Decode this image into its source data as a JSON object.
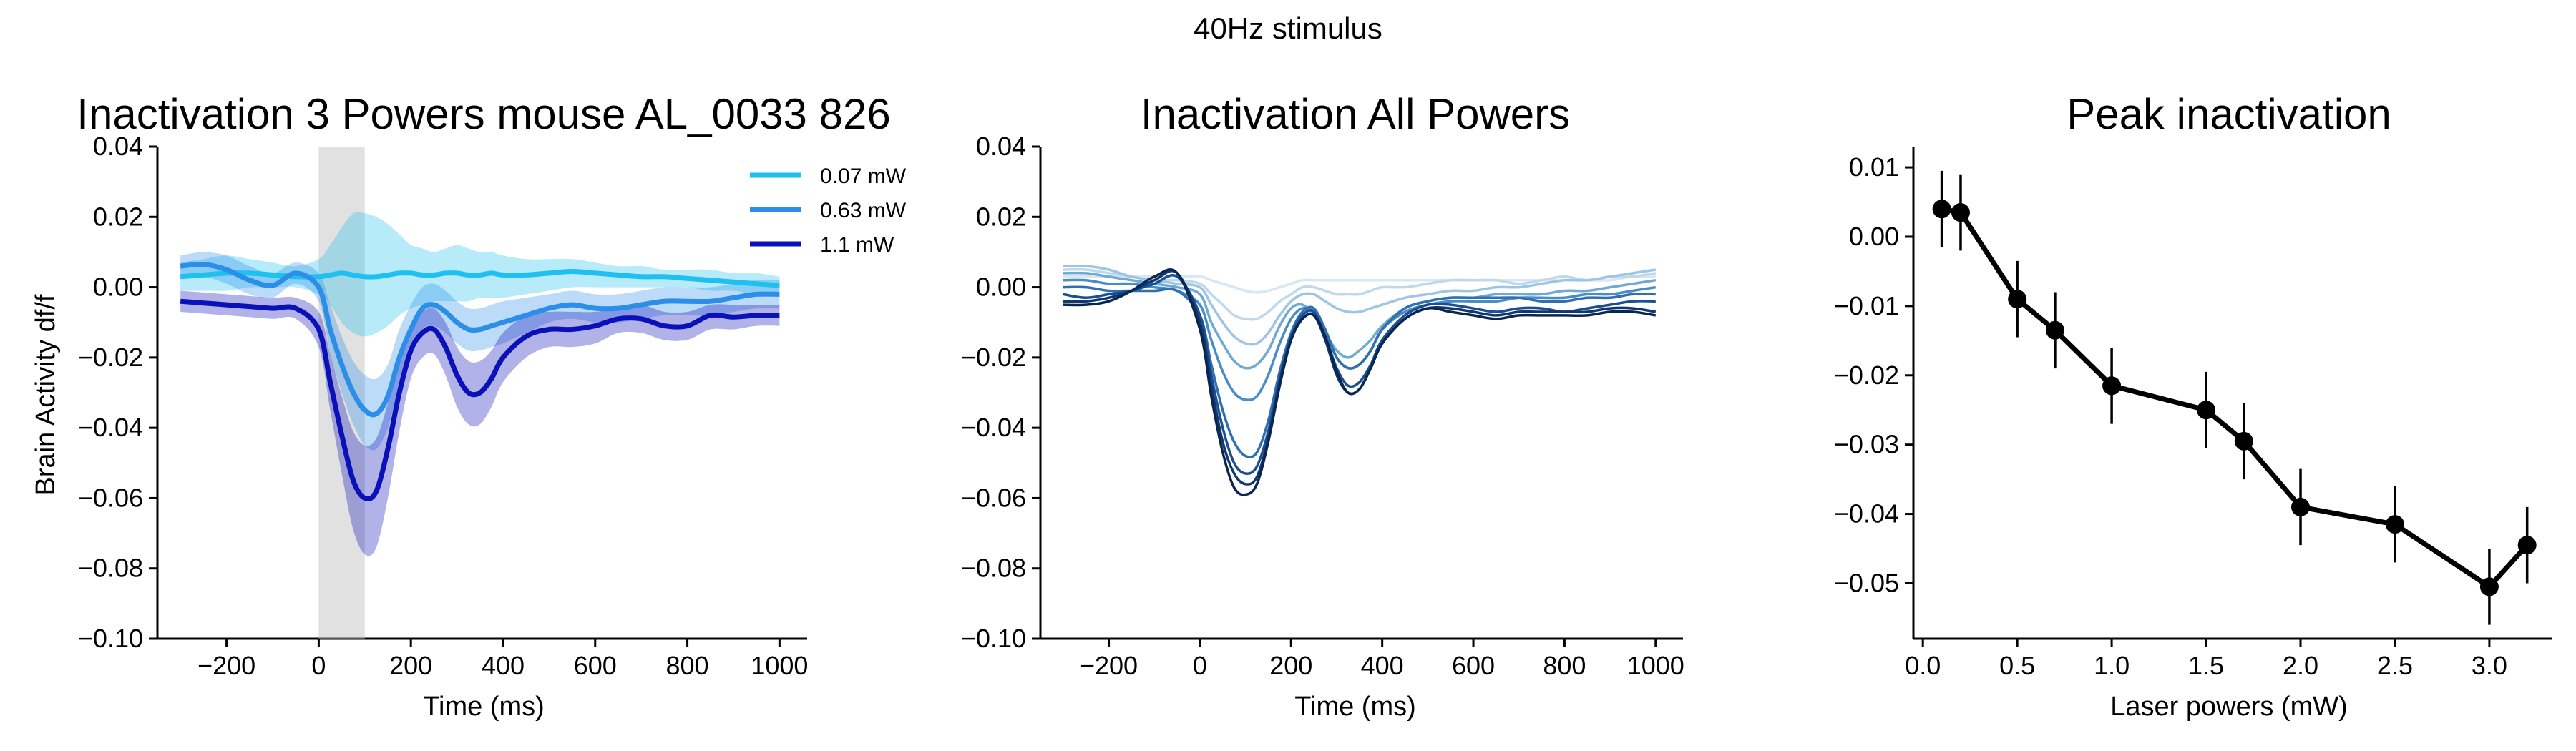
{
  "suptitle": "40Hz stimulus",
  "chart_data": [
    {
      "type": "line",
      "title": "Inactivation 3 Powers mouse AL_0033 826",
      "xlabel": "Time (ms)",
      "ylabel": "Brain Activity df/f",
      "xlim": [
        -350,
        1060
      ],
      "ylim": [
        -0.1,
        0.04
      ],
      "xticks": [
        -200,
        0,
        200,
        400,
        600,
        800,
        1000
      ],
      "xtick_labels": [
        "−200",
        "0",
        "200",
        "400",
        "600",
        "800",
        "1000"
      ],
      "yticks": [
        -0.1,
        -0.08,
        -0.06,
        -0.04,
        -0.02,
        0.0,
        0.02,
        0.04
      ],
      "ytick_labels": [
        "−0.10",
        "−0.08",
        "−0.06",
        "−0.04",
        "−0.02",
        "0.00",
        "0.02",
        "0.04"
      ],
      "grid": false,
      "legend_position": "upper-right",
      "stim_window": [
        0,
        100
      ],
      "x": [
        -300,
        -250,
        -200,
        -150,
        -100,
        -50,
        0,
        25,
        50,
        75,
        100,
        125,
        150,
        175,
        200,
        225,
        250,
        275,
        300,
        325,
        350,
        375,
        400,
        450,
        500,
        550,
        600,
        650,
        700,
        750,
        800,
        850,
        900,
        950,
        1000
      ],
      "series": [
        {
          "name": "0.07 mW",
          "color": "#1ec0ef",
          "values": [
            0.003,
            0.0035,
            0.004,
            0.004,
            0.0035,
            0.003,
            0.003,
            0.0035,
            0.004,
            0.0035,
            0.003,
            0.003,
            0.0035,
            0.004,
            0.004,
            0.0035,
            0.0035,
            0.004,
            0.004,
            0.0035,
            0.0035,
            0.004,
            0.0035,
            0.0035,
            0.004,
            0.0045,
            0.004,
            0.0035,
            0.003,
            0.003,
            0.0025,
            0.002,
            0.0015,
            0.001,
            0.0005
          ],
          "band_upper": [
            0.007,
            0.008,
            0.009,
            0.008,
            0.007,
            0.006,
            0.008,
            0.012,
            0.017,
            0.021,
            0.021,
            0.02,
            0.018,
            0.015,
            0.012,
            0.011,
            0.01,
            0.011,
            0.012,
            0.011,
            0.01,
            0.01,
            0.009,
            0.008,
            0.008,
            0.008,
            0.007,
            0.006,
            0.006,
            0.005,
            0.005,
            0.005,
            0.004,
            0.004,
            0.003
          ],
          "band_lower": [
            -0.001,
            -0.001,
            -0.001,
            0.0,
            0.0,
            0.0,
            -0.002,
            -0.005,
            -0.01,
            -0.013,
            -0.014,
            -0.013,
            -0.011,
            -0.008,
            -0.006,
            -0.005,
            -0.004,
            -0.004,
            -0.004,
            -0.004,
            -0.003,
            -0.003,
            -0.003,
            -0.002,
            -0.001,
            0.0,
            0.0,
            0.0,
            0.0,
            0.0,
            0.0,
            -0.001,
            -0.001,
            -0.002,
            -0.002
          ]
        },
        {
          "name": "0.63 mW",
          "color": "#2c8ee8",
          "values": [
            0.006,
            0.0065,
            0.005,
            0.002,
            0.0005,
            0.004,
            0.0,
            -0.012,
            -0.022,
            -0.03,
            -0.035,
            -0.036,
            -0.031,
            -0.02,
            -0.012,
            -0.006,
            -0.005,
            -0.007,
            -0.01,
            -0.012,
            -0.012,
            -0.011,
            -0.01,
            -0.008,
            -0.006,
            -0.005,
            -0.006,
            -0.006,
            -0.005,
            -0.004,
            -0.004,
            -0.004,
            -0.003,
            -0.002,
            -0.002
          ],
          "band_upper": [
            0.009,
            0.01,
            0.009,
            0.006,
            0.004,
            0.007,
            0.004,
            -0.005,
            -0.014,
            -0.021,
            -0.025,
            -0.026,
            -0.022,
            -0.012,
            -0.005,
            0.0,
            0.001,
            -0.001,
            -0.004,
            -0.006,
            -0.006,
            -0.005,
            -0.004,
            -0.003,
            -0.002,
            -0.001,
            -0.002,
            -0.002,
            -0.001,
            0.0,
            0.0,
            0.0,
            0.001,
            0.002,
            0.002
          ],
          "band_lower": [
            0.003,
            0.003,
            0.001,
            -0.002,
            -0.003,
            0.001,
            -0.004,
            -0.019,
            -0.03,
            -0.039,
            -0.045,
            -0.046,
            -0.04,
            -0.028,
            -0.019,
            -0.012,
            -0.011,
            -0.013,
            -0.016,
            -0.018,
            -0.018,
            -0.017,
            -0.016,
            -0.013,
            -0.01,
            -0.009,
            -0.01,
            -0.01,
            -0.009,
            -0.008,
            -0.008,
            -0.008,
            -0.007,
            -0.006,
            -0.006
          ]
        },
        {
          "name": "1.1 mW",
          "color": "#0b11b8",
          "values": [
            -0.004,
            -0.0045,
            -0.005,
            -0.0055,
            -0.006,
            -0.006,
            -0.012,
            -0.027,
            -0.042,
            -0.055,
            -0.06,
            -0.058,
            -0.046,
            -0.03,
            -0.018,
            -0.013,
            -0.012,
            -0.017,
            -0.025,
            -0.03,
            -0.03,
            -0.026,
            -0.02,
            -0.014,
            -0.012,
            -0.012,
            -0.011,
            -0.009,
            -0.009,
            -0.011,
            -0.011,
            -0.008,
            -0.0085,
            -0.008,
            -0.008
          ],
          "band_upper": [
            -0.001,
            -0.0015,
            -0.002,
            -0.0025,
            -0.003,
            -0.003,
            -0.007,
            -0.019,
            -0.031,
            -0.041,
            -0.045,
            -0.043,
            -0.033,
            -0.02,
            -0.011,
            -0.007,
            -0.006,
            -0.01,
            -0.017,
            -0.021,
            -0.021,
            -0.018,
            -0.013,
            -0.008,
            -0.007,
            -0.007,
            -0.007,
            -0.006,
            -0.005,
            -0.007,
            -0.007,
            -0.005,
            -0.005,
            -0.005,
            -0.005
          ],
          "band_lower": [
            -0.007,
            -0.0075,
            -0.008,
            -0.0085,
            -0.009,
            -0.009,
            -0.017,
            -0.035,
            -0.053,
            -0.069,
            -0.076,
            -0.074,
            -0.06,
            -0.041,
            -0.026,
            -0.02,
            -0.019,
            -0.025,
            -0.034,
            -0.039,
            -0.039,
            -0.034,
            -0.027,
            -0.02,
            -0.017,
            -0.017,
            -0.016,
            -0.013,
            -0.013,
            -0.015,
            -0.015,
            -0.012,
            -0.012,
            -0.011,
            -0.011
          ]
        }
      ]
    },
    {
      "type": "line",
      "title": "Inactivation All Powers",
      "xlabel": "Time (ms)",
      "ylabel": "",
      "xlim": [
        -350,
        1060
      ],
      "ylim": [
        -0.1,
        0.04
      ],
      "xticks": [
        -200,
        0,
        200,
        400,
        600,
        800,
        1000
      ],
      "xtick_labels": [
        "−200",
        "0",
        "200",
        "400",
        "600",
        "800",
        "1000"
      ],
      "yticks": [
        -0.1,
        -0.08,
        -0.06,
        -0.04,
        -0.02,
        0.0,
        0.02,
        0.04
      ],
      "ytick_labels": [
        "−0.10",
        "−0.08",
        "−0.06",
        "−0.04",
        "−0.02",
        "0.00",
        "0.02",
        "0.04"
      ],
      "grid": false,
      "x": [
        -300,
        -250,
        -200,
        -150,
        -100,
        -50,
        0,
        25,
        50,
        75,
        100,
        125,
        150,
        175,
        200,
        225,
        250,
        275,
        300,
        325,
        350,
        375,
        400,
        450,
        500,
        550,
        600,
        650,
        700,
        750,
        800,
        850,
        900,
        950,
        1000
      ],
      "series": [
        {
          "color": "#d9e7f5",
          "values": [
            0.003,
            0.003,
            0.003,
            0.003,
            0.003,
            0.003,
            0.003,
            0.002,
            0.001,
            0.0,
            -0.001,
            -0.0015,
            -0.001,
            0.0,
            0.001,
            0.002,
            0.002,
            0.002,
            0.002,
            0.002,
            0.002,
            0.002,
            0.002,
            0.002,
            0.002,
            0.002,
            0.002,
            0.002,
            0.002,
            0.002,
            0.002,
            0.002,
            0.002,
            0.003,
            0.003
          ]
        },
        {
          "color": "#c0d8ee",
          "values": [
            0.005,
            0.005,
            0.004,
            0.003,
            0.002,
            0.002,
            0.001,
            -0.002,
            -0.005,
            -0.008,
            -0.009,
            -0.009,
            -0.007,
            -0.004,
            -0.002,
            0.0,
            0.0,
            -0.001,
            -0.002,
            -0.002,
            -0.002,
            -0.001,
            0.0,
            0.0,
            0.001,
            0.002,
            0.002,
            0.002,
            0.001,
            0.002,
            0.003,
            0.002,
            0.003,
            0.003,
            0.004
          ]
        },
        {
          "color": "#9ec6e4",
          "values": [
            0.006,
            0.006,
            0.005,
            0.003,
            0.002,
            0.001,
            0.0,
            -0.005,
            -0.01,
            -0.014,
            -0.016,
            -0.016,
            -0.013,
            -0.008,
            -0.004,
            -0.002,
            -0.002,
            -0.004,
            -0.006,
            -0.007,
            -0.007,
            -0.006,
            -0.005,
            -0.003,
            -0.002,
            -0.001,
            -0.001,
            0.0,
            0.0,
            0.001,
            0.002,
            0.002,
            0.003,
            0.004,
            0.005
          ]
        },
        {
          "color": "#6faad6",
          "values": [
            0.004,
            0.004,
            0.003,
            0.002,
            0.001,
            0.0,
            -0.002,
            -0.01,
            -0.016,
            -0.021,
            -0.023,
            -0.022,
            -0.018,
            -0.011,
            -0.006,
            -0.005,
            -0.008,
            -0.013,
            -0.018,
            -0.02,
            -0.018,
            -0.015,
            -0.011,
            -0.006,
            -0.004,
            -0.003,
            -0.003,
            -0.002,
            -0.002,
            -0.002,
            -0.001,
            -0.001,
            0.0,
            0.001,
            0.002
          ]
        },
        {
          "color": "#4a8cc6",
          "values": [
            0.002,
            0.002,
            0.001,
            0.001,
            0.0,
            -0.001,
            -0.005,
            -0.015,
            -0.024,
            -0.03,
            -0.032,
            -0.031,
            -0.025,
            -0.016,
            -0.009,
            -0.006,
            -0.007,
            -0.013,
            -0.02,
            -0.023,
            -0.022,
            -0.018,
            -0.012,
            -0.007,
            -0.005,
            -0.004,
            -0.004,
            -0.004,
            -0.003,
            -0.003,
            -0.003,
            -0.002,
            -0.002,
            -0.001,
            0.0
          ]
        },
        {
          "color": "#2f6fb2",
          "values": [
            0.0,
            0.0,
            -0.001,
            -0.001,
            -0.001,
            -0.001,
            -0.008,
            -0.022,
            -0.035,
            -0.044,
            -0.048,
            -0.047,
            -0.038,
            -0.024,
            -0.013,
            -0.007,
            -0.006,
            -0.012,
            -0.02,
            -0.023,
            -0.022,
            -0.018,
            -0.012,
            -0.006,
            -0.004,
            -0.003,
            -0.003,
            -0.003,
            -0.003,
            -0.004,
            -0.004,
            -0.003,
            -0.003,
            -0.002,
            -0.002
          ]
        },
        {
          "color": "#1b4f91",
          "values": [
            -0.002,
            -0.003,
            -0.002,
            -0.001,
            0.001,
            0.003,
            -0.008,
            -0.025,
            -0.04,
            -0.05,
            -0.053,
            -0.051,
            -0.041,
            -0.026,
            -0.014,
            -0.008,
            -0.007,
            -0.014,
            -0.023,
            -0.028,
            -0.027,
            -0.022,
            -0.015,
            -0.008,
            -0.005,
            -0.005,
            -0.006,
            -0.007,
            -0.006,
            -0.006,
            -0.007,
            -0.006,
            -0.005,
            -0.004,
            -0.004
          ]
        },
        {
          "color": "#10386f",
          "values": [
            -0.004,
            -0.004,
            -0.003,
            -0.001,
            0.002,
            0.004,
            -0.01,
            -0.028,
            -0.044,
            -0.053,
            -0.056,
            -0.054,
            -0.043,
            -0.027,
            -0.015,
            -0.009,
            -0.008,
            -0.015,
            -0.025,
            -0.03,
            -0.029,
            -0.023,
            -0.016,
            -0.009,
            -0.006,
            -0.006,
            -0.007,
            -0.008,
            -0.007,
            -0.007,
            -0.007,
            -0.007,
            -0.006,
            -0.006,
            -0.007
          ]
        },
        {
          "color": "#0a2550",
          "values": [
            -0.005,
            -0.005,
            -0.004,
            -0.001,
            0.003,
            0.004,
            -0.012,
            -0.031,
            -0.047,
            -0.057,
            -0.059,
            -0.056,
            -0.044,
            -0.028,
            -0.015,
            -0.009,
            -0.008,
            -0.014,
            -0.024,
            -0.03,
            -0.029,
            -0.023,
            -0.016,
            -0.009,
            -0.006,
            -0.007,
            -0.008,
            -0.009,
            -0.008,
            -0.008,
            -0.008,
            -0.008,
            -0.007,
            -0.007,
            -0.008
          ]
        }
      ]
    },
    {
      "type": "line",
      "title": "Peak inactivation",
      "xlabel": "Laser powers (mW)",
      "ylabel": "",
      "xlim": [
        -0.05,
        3.33
      ],
      "ylim": [
        -0.058,
        0.013
      ],
      "xticks": [
        0.0,
        0.5,
        1.0,
        1.5,
        2.0,
        2.5,
        3.0
      ],
      "xtick_labels": [
        "0.0",
        "0.5",
        "1.0",
        "1.5",
        "2.0",
        "2.5",
        "3.0"
      ],
      "yticks": [
        -0.05,
        -0.04,
        -0.03,
        -0.02,
        -0.01,
        0.0,
        0.01
      ],
      "ytick_labels": [
        "−0.05",
        "−0.04",
        "−0.03",
        "−0.02",
        "−0.01",
        "0.00",
        "0.01"
      ],
      "grid": false,
      "color": "#000000",
      "x": [
        0.1,
        0.2,
        0.5,
        0.7,
        1.0,
        1.5,
        1.7,
        2.0,
        2.5,
        3.0,
        3.2
      ],
      "values": [
        0.004,
        0.0035,
        -0.009,
        -0.0135,
        -0.0215,
        -0.025,
        -0.0295,
        -0.039,
        -0.0415,
        -0.0505,
        -0.0445
      ],
      "error": [
        0.0055,
        0.0055,
        0.0055,
        0.0055,
        0.0055,
        0.0055,
        0.0055,
        0.0055,
        0.0055,
        0.0055,
        0.0055
      ]
    }
  ]
}
